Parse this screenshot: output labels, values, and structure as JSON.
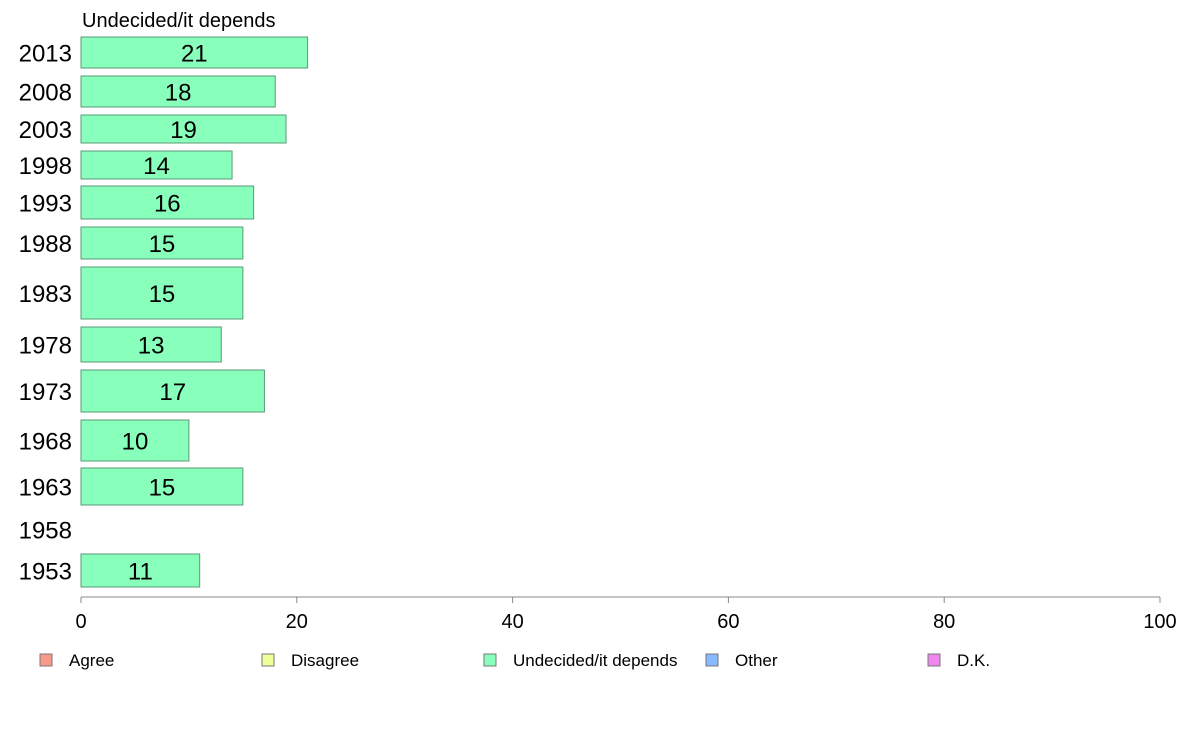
{
  "chart_data": {
    "type": "bar",
    "orientation": "horizontal",
    "title": "Undecided/it depends",
    "categories": [
      "2013",
      "2008",
      "2003",
      "1998",
      "1993",
      "1988",
      "1983",
      "1978",
      "1973",
      "1968",
      "1963",
      "1958",
      "1953"
    ],
    "values": [
      21,
      18,
      19,
      14,
      16,
      15,
      15,
      13,
      17,
      10,
      15,
      null,
      11
    ],
    "data_labels": [
      "21",
      "18",
      "19",
      "14",
      "16",
      "15",
      "15",
      "13",
      "17",
      "10",
      "15",
      "",
      "11"
    ],
    "xlim": [
      0,
      100
    ],
    "xticks": [
      0,
      20,
      40,
      60,
      80,
      100
    ],
    "xtick_labels": [
      "0",
      "20",
      "40",
      "60",
      "80",
      "100"
    ],
    "bar_color": "#88ffbb",
    "grid": false,
    "legend_position": "bottom",
    "legend": [
      {
        "label": "Agree",
        "color": "#f89a8a"
      },
      {
        "label": "Disagree",
        "color": "#eeff99"
      },
      {
        "label": "Undecided/it depends",
        "color": "#88ffbb"
      },
      {
        "label": "Other",
        "color": "#88bbff"
      },
      {
        "label": "D.K.",
        "color": "#ee88ee"
      }
    ]
  }
}
